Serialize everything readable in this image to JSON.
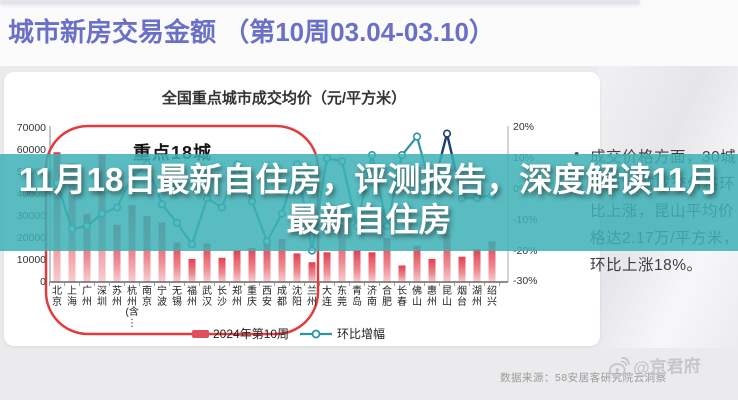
{
  "page": {
    "header_title": "城市新房交易金额 （第10周03.04-03.10）",
    "source_note": "数据来源：58安居客研究院云洞察",
    "watermark": "@京君府"
  },
  "overlay": {
    "title_line1": "11月18日最新自住房，评测报告，深度解读11月",
    "title_line2": "最新自住房"
  },
  "side_panel": {
    "bullet": "•",
    "lines": [
      "成交价格方面，30城",
      "中有11城成交价格环",
      "比上涨，昆山平均价",
      "格达2.17万/平方米，",
      "环比上涨18%。"
    ]
  },
  "chart_data": {
    "type": "bar",
    "title": "全国重点城市成交均价（元/平方米）",
    "annotation": "重点18城",
    "highlight_city": "昆山",
    "categories": [
      "北京",
      "上海",
      "广州",
      "深圳",
      "苏州",
      "杭州(含⋮",
      "南京",
      "宁波",
      "无锡",
      "福州",
      "武汉",
      "长沙",
      "郑州",
      "重庆",
      "西安",
      "成都",
      "沈阳",
      "兰州",
      "大连",
      "东莞",
      "青岛",
      "济南",
      "合肥",
      "长春",
      "佛山",
      "惠州",
      "昆山",
      "烟台",
      "湖州",
      "绍兴"
    ],
    "series": [
      {
        "name": "2024年第10周",
        "type": "bar",
        "unit": "元/平方米",
        "values": [
          59000,
          54000,
          31000,
          58000,
          26000,
          35000,
          30000,
          27000,
          18000,
          10500,
          17500,
          11000,
          14500,
          15500,
          17500,
          19500,
          13000,
          9000,
          13500,
          26000,
          14500,
          13500,
          20000,
          7500,
          16500,
          10500,
          21700,
          11500,
          15000,
          18500
        ]
      },
      {
        "name": "环比增幅",
        "type": "line",
        "unit": "%",
        "values": [
          2,
          -13,
          -12,
          -8,
          -6,
          4,
          8,
          -5,
          -11,
          -18,
          -3,
          -6,
          8,
          -4,
          -17,
          -8,
          8,
          -20,
          10,
          9,
          -12,
          11,
          -12,
          11,
          17,
          -1,
          18,
          -3,
          -3,
          -2
        ]
      }
    ],
    "left_axis": {
      "ticks": [
        "70000",
        "60000",
        "50000",
        "40000",
        "30000",
        "20000",
        "10000",
        "0"
      ],
      "min": 0,
      "max": 70000
    },
    "right_axis": {
      "ticks": [
        "20%",
        "10%",
        "0%",
        "-10%",
        "-20%",
        "-30%"
      ],
      "min": -30,
      "max": 20
    },
    "legend_position": "bottom",
    "grid": false,
    "colors": {
      "bar_top": "#e2404f",
      "bar_bottom": "#f8cdd0",
      "line": "#2c93a3",
      "line_highlight": "#1d3f6e",
      "annotation_box": "#e23b3b",
      "band": "#3db1b6",
      "header": "#6a70c8",
      "legend_swatch": "#e0505c"
    }
  }
}
